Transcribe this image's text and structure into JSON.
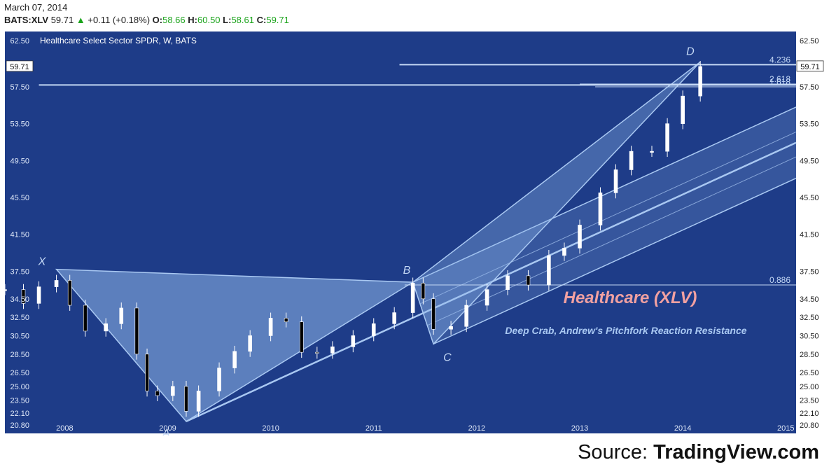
{
  "header": {
    "date": "March 07, 2014",
    "symbol": "BATS:XLV",
    "last": "59.71",
    "change": "+0.11 (+0.18%)",
    "open_label": "O:",
    "open": "58.66",
    "high_label": "H:",
    "high": "60.50",
    "low_label": "L:",
    "low": "58.61",
    "close_label": "C:",
    "close": "59.71"
  },
  "source": {
    "prefix": "Source: ",
    "brand": "TradingView.com"
  },
  "colors": {
    "background": "#1e3c88",
    "pattern_fill": "#8fb6ea",
    "pitchfork_line": "#a9c8f2",
    "annotation_title": "#f2a1a1",
    "annotation_subtitle": "#a9c8f2",
    "axis_text": "#222222",
    "price_marker_bg": "#ffffff"
  },
  "chart_data": {
    "type": "candlestick",
    "title": "Healthcare Select Sector SPDR, W, BATS",
    "annotation_title": "Healthcare (XLV)",
    "annotation_subtitle": "Deep Crab, Andrew's Pitchfork Reaction Resistance",
    "xlim": [
      2007.42,
      2015.1
    ],
    "ylim": [
      19.9,
      63.5
    ],
    "x_ticks": [
      2008,
      2009,
      2010,
      2011,
      2012,
      2013,
      2014,
      2015
    ],
    "x_tick_labels": [
      "2008",
      "2009",
      "2010",
      "2011",
      "2012",
      "2013",
      "2014",
      "2015"
    ],
    "y_ticks": [
      62.5,
      57.5,
      53.5,
      49.5,
      45.5,
      41.5,
      37.5,
      34.5,
      32.5,
      30.5,
      28.5,
      26.5,
      25.0,
      23.5,
      22.1,
      20.8
    ],
    "y_tick_labels": [
      "62.50",
      "57.50",
      "53.50",
      "49.50",
      "45.50",
      "41.50",
      "37.50",
      "34.50",
      "32.50",
      "30.50",
      "28.50",
      "26.50",
      "25.00",
      "23.50",
      "22.10",
      "20.80"
    ],
    "current_price": 59.71,
    "current_price_label": "59.71",
    "pattern_points": [
      {
        "label": "X",
        "x": 2007.92,
        "y": 37.7
      },
      {
        "label": "A",
        "x": 2009.18,
        "y": 21.2
      },
      {
        "label": "B",
        "x": 2011.38,
        "y": 36.3
      },
      {
        "label": "C",
        "x": 2011.58,
        "y": 29.6
      },
      {
        "label": "D",
        "x": 2014.17,
        "y": 60.2
      }
    ],
    "fib_levels": [
      {
        "label": "0.886",
        "value": 36.0
      },
      {
        "label": "4.236",
        "value": 59.9
      },
      {
        "label": "2.618",
        "value": 57.8
      },
      {
        "label": "1.618",
        "value": 57.5
      }
    ],
    "weekly_series": {
      "x": [
        2007.42,
        2007.6,
        2007.75,
        2007.92,
        2008.05,
        2008.2,
        2008.4,
        2008.55,
        2008.7,
        2008.8,
        2008.9,
        2009.05,
        2009.18,
        2009.3,
        2009.5,
        2009.65,
        2009.8,
        2010.0,
        2010.15,
        2010.3,
        2010.45,
        2010.6,
        2010.8,
        2011.0,
        2011.2,
        2011.38,
        2011.48,
        2011.58,
        2011.75,
        2011.9,
        2012.1,
        2012.3,
        2012.5,
        2012.7,
        2012.85,
        2013.0,
        2013.2,
        2013.35,
        2013.5,
        2013.7,
        2013.85,
        2014.0,
        2014.17
      ],
      "close": [
        35.5,
        34.0,
        35.8,
        36.5,
        33.8,
        31.0,
        31.8,
        33.5,
        28.5,
        24.5,
        24.0,
        25.0,
        22.3,
        24.5,
        27.0,
        28.8,
        30.5,
        32.4,
        32.0,
        28.7,
        28.6,
        29.3,
        30.5,
        31.8,
        33.0,
        36.2,
        34.5,
        31.2,
        31.5,
        33.8,
        35.5,
        37.0,
        36.0,
        39.2,
        40.0,
        42.5,
        46.0,
        48.5,
        50.5,
        50.5,
        53.5,
        56.5,
        59.71
      ]
    }
  }
}
